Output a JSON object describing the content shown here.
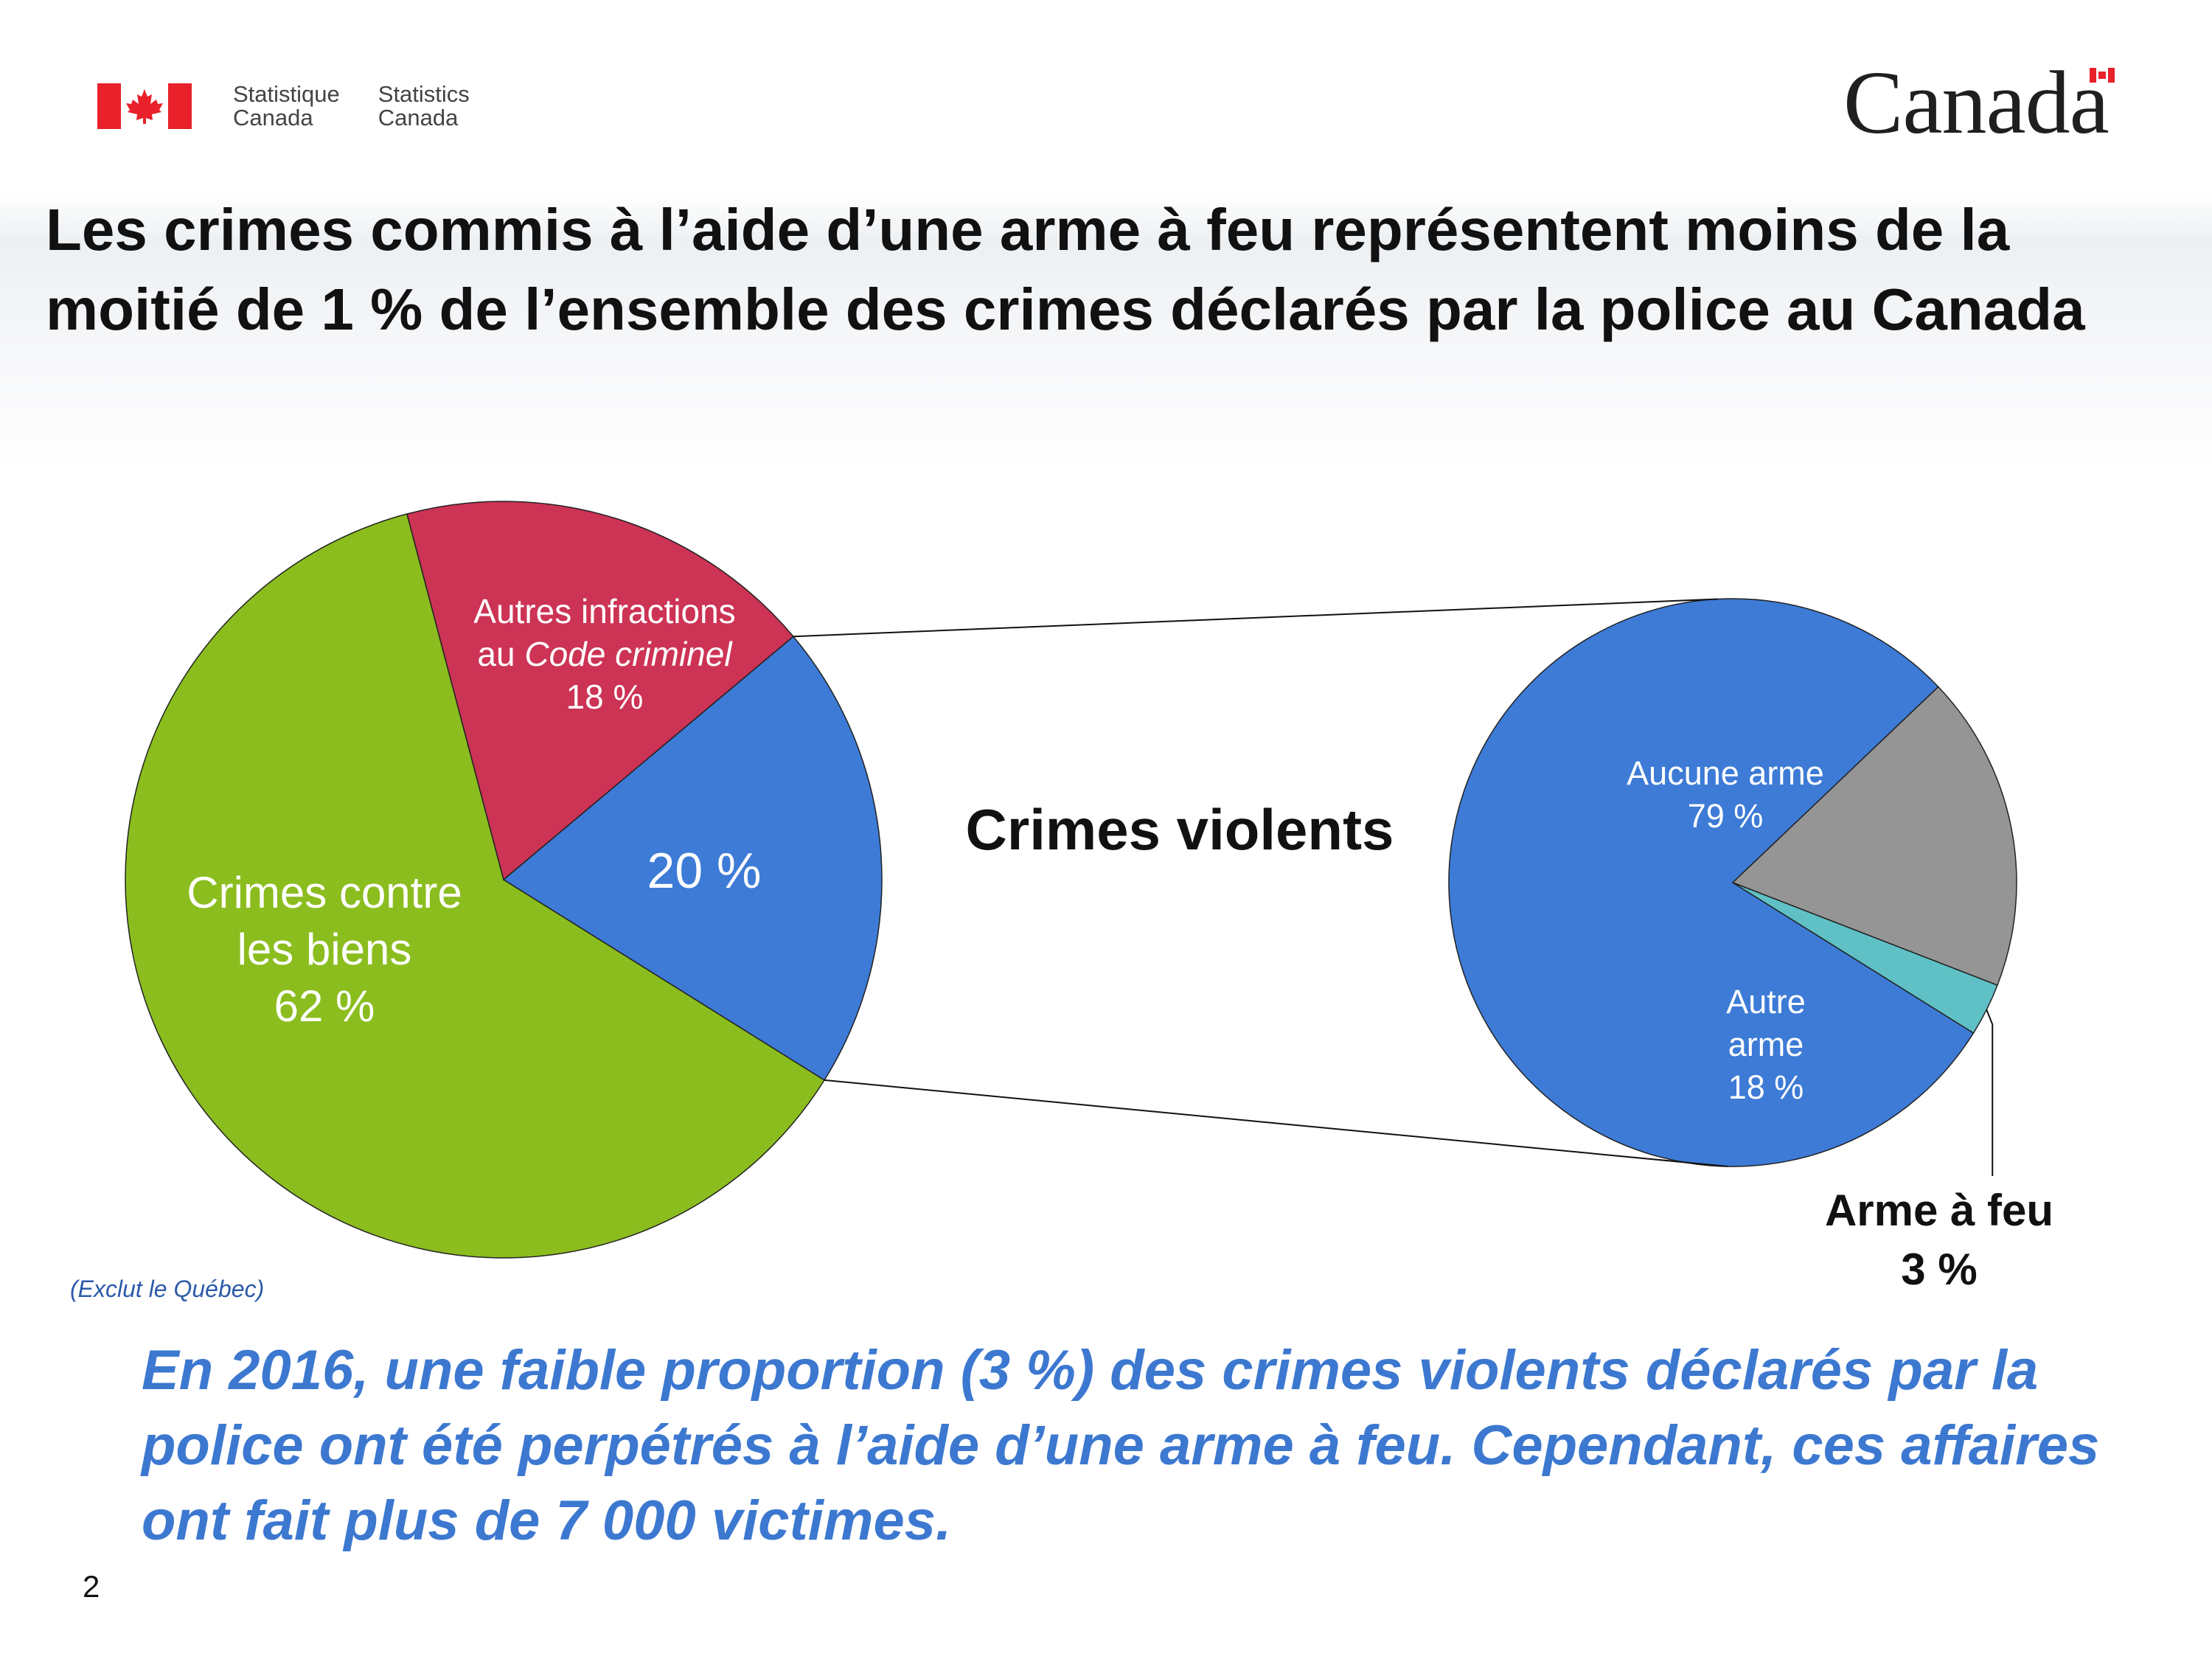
{
  "header": {
    "stat_fr_1": "Statistique",
    "stat_fr_2": "Canada",
    "stat_en_1": "Statistics",
    "stat_en_2": "Canada",
    "wordmark": "Canada"
  },
  "title": "Les crimes commis à l’aide d’une arme à feu représentent moins de la moitié de 1 % de l’ensemble des crimes déclarés par la police au Canada",
  "labels": {
    "autres_line1": "Autres infractions",
    "autres_line2_prefix": "au ",
    "autres_line2_italic": "Code criminel",
    "autres_pct": "18 %",
    "violent_pct": "20 %",
    "biens_line1": "Crimes contre",
    "biens_line2": "les biens",
    "biens_pct": "62 %",
    "crimes_violents": "Crimes violents",
    "aucune_line1": "Aucune arme",
    "aucune_pct": "79 %",
    "autrearme_line1": "Autre",
    "autrearme_line2": "arme",
    "autrearme_pct": "18 %",
    "feu_line1": "Arme à feu",
    "feu_pct": "3 %"
  },
  "note": "(Exclut  le Québec)",
  "statement": "En 2016, une faible proportion (3 %) des crimes violents déclarés par la police ont été perpétrés à l’aide d’une arme à feu. Cependant, ces affaires ont fait plus de 7 000 victimes.",
  "page_number": "2",
  "colors": {
    "property": "#8bbd1f",
    "other_cc": "#cc3355",
    "violent": "#3d7bd6",
    "no_weapon": "#3d7bd6",
    "other_weapon": "#959595",
    "firearm": "#5fc1c6",
    "statement_text": "#3c78d0",
    "flag_red": "#e8212b"
  },
  "chart_data": [
    {
      "type": "pie",
      "slices": [
        {
          "label": "Crimes contre les biens",
          "value": 62,
          "color": "#8bbd1f"
        },
        {
          "label": "Autres infractions au Code criminel",
          "value": 18,
          "color": "#cc3355"
        },
        {
          "label": "Crimes violents",
          "value": 20,
          "color": "#3d7bd6"
        }
      ],
      "unit": "%"
    },
    {
      "type": "pie",
      "title": "Crimes violents",
      "slices": [
        {
          "label": "Aucune arme",
          "value": 79,
          "color": "#3d7bd6"
        },
        {
          "label": "Autre arme",
          "value": 18,
          "color": "#959595"
        },
        {
          "label": "Arme à feu",
          "value": 3,
          "color": "#5fc1c6"
        }
      ],
      "unit": "%"
    }
  ]
}
